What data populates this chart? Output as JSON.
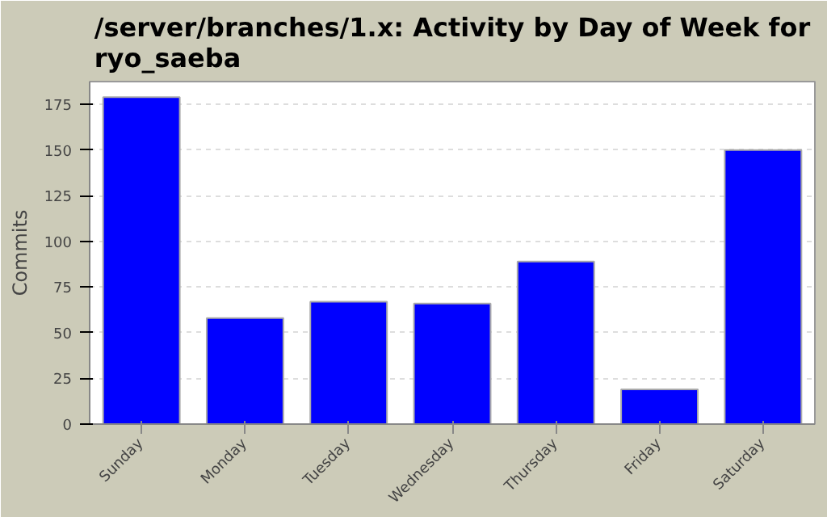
{
  "chart_data": {
    "type": "bar",
    "title": "/server/branches/1.x: Activity by Day of Week for ryo_saeba",
    "ylabel": "Commits",
    "categories": [
      "Sunday",
      "Monday",
      "Tuesday",
      "Wednesday",
      "Thursday",
      "Friday",
      "Saturday"
    ],
    "values": [
      179,
      58,
      67,
      66,
      89,
      19,
      150
    ],
    "color": "#0000ff",
    "ylim": [
      0,
      187.5
    ],
    "yticks": [
      0,
      25,
      50,
      75,
      100,
      125,
      150,
      175
    ],
    "grid": "y"
  }
}
